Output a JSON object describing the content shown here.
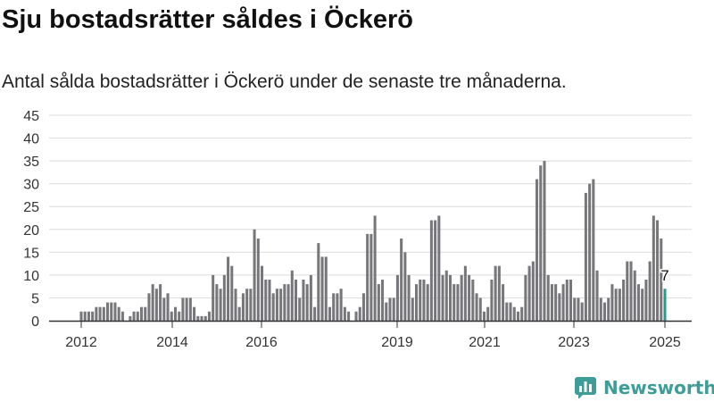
{
  "title": "Sju bostadsrätter såldes i Öckerö",
  "subtitle": "Antal sålda bostadsrätter i Öckerö under de senaste tre månaderna.",
  "brand": {
    "name": "Newsworthy",
    "icon": "bar-chart-logo-icon",
    "color": "#3e9d97"
  },
  "chart_data": {
    "type": "bar",
    "title": "",
    "xlabel": "",
    "ylabel": "",
    "ylim": [
      0,
      45
    ],
    "yticks": [
      "0",
      "5",
      "10",
      "15",
      "20",
      "25",
      "30",
      "35",
      "40",
      "45"
    ],
    "xticks": [
      "2012",
      "2014",
      "2016",
      "2019",
      "2021",
      "2023",
      "2025"
    ],
    "grid": true,
    "bar_color": "#77767a",
    "highlight_color": "#2a9890",
    "highlight_label": "7",
    "series": [
      {
        "values": [
          2,
          2,
          2,
          2,
          3,
          3,
          3,
          4,
          4,
          4,
          3,
          2,
          0,
          1,
          2,
          2,
          3,
          3,
          6,
          8,
          7,
          8,
          5,
          6,
          2,
          3,
          2,
          5,
          5,
          5,
          3,
          1,
          1,
          1,
          2,
          10,
          8,
          7,
          10,
          14,
          12,
          7,
          3,
          6,
          7,
          7,
          20,
          18,
          12,
          9,
          9,
          6,
          7,
          7,
          8,
          8,
          11,
          9,
          5,
          9,
          8,
          10,
          3,
          17,
          14,
          14,
          3,
          6,
          6,
          7,
          3,
          2,
          0,
          2,
          3,
          6,
          19,
          19,
          23,
          8,
          9,
          4,
          5,
          5,
          10,
          18,
          15,
          10,
          5,
          8,
          9,
          9,
          8,
          22,
          22,
          23,
          10,
          11,
          10,
          8,
          8,
          10,
          12,
          10,
          9,
          6,
          5,
          2,
          3,
          9,
          12,
          12,
          8,
          4,
          4,
          3,
          2,
          3,
          10,
          12,
          13,
          31,
          34,
          35,
          10,
          8,
          8,
          6,
          8,
          9,
          9,
          5,
          5,
          4,
          28,
          30,
          31,
          11,
          5,
          4,
          5,
          8,
          7,
          7,
          9,
          13,
          13,
          11,
          8,
          7,
          9,
          13,
          23,
          22,
          18,
          7
        ]
      }
    ]
  }
}
